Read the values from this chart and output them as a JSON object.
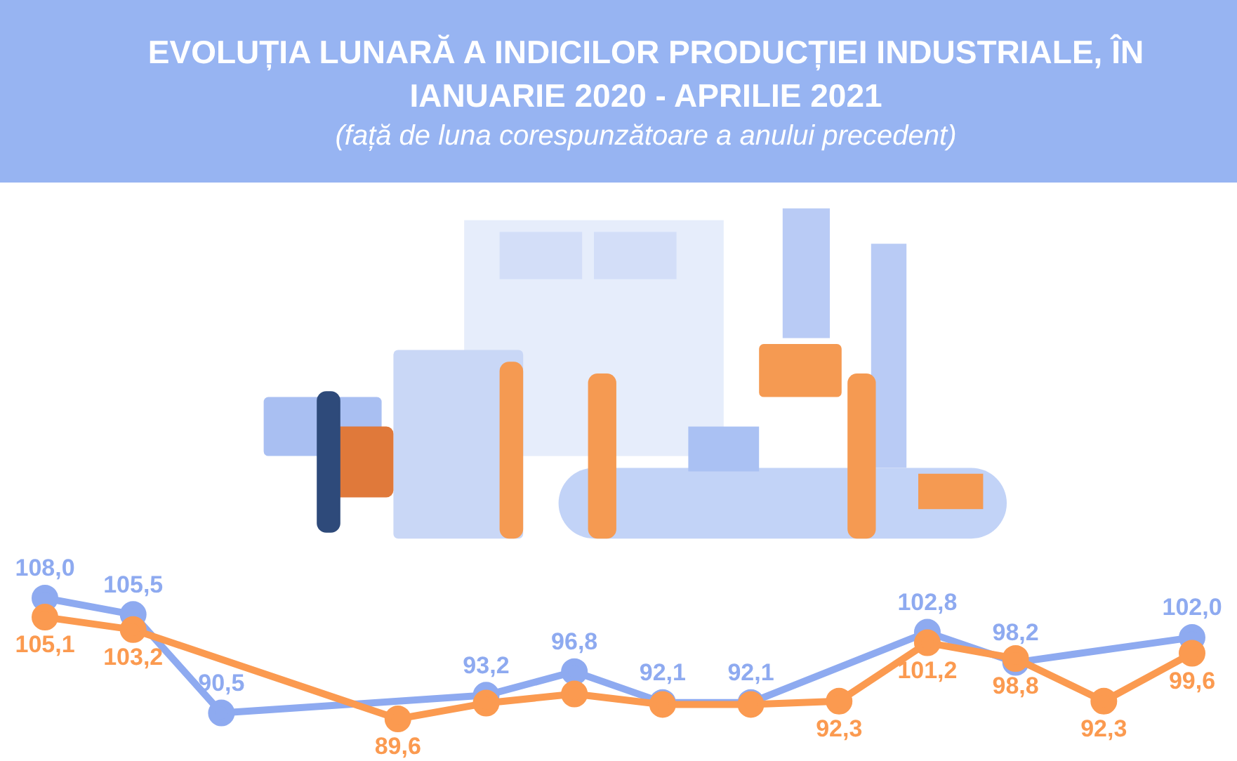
{
  "chart_data": {
    "type": "line",
    "title": "EVOLUȚIA LUNARĂ A INDICILOR PRODUCȚIEI INDUSTRIALE, ÎN IANUARIE 2020 - APRILIE 2021",
    "subtitle": "(față de luna corespunzătoare a anului precedent)",
    "categories": [
      null,
      null,
      null,
      null,
      null,
      null,
      null,
      null,
      null,
      null,
      null,
      null,
      null,
      null
    ],
    "series": [
      {
        "color": "#8eaaf0",
        "values": [
          108.0,
          105.5,
          90.5,
          null,
          null,
          93.2,
          96.8,
          92.1,
          92.1,
          null,
          102.8,
          98.2,
          null,
          102.0
        ],
        "value_labels": [
          "108,0",
          "105,5",
          "90,5",
          null,
          null,
          "93,2",
          "96,8",
          "92,1",
          "92,1",
          null,
          "102,8",
          "98,2",
          null,
          "102,0"
        ]
      },
      {
        "color": "#fb9a50",
        "values": [
          105.1,
          103.2,
          null,
          null,
          89.6,
          92.0,
          93.4,
          91.8,
          91.8,
          92.3,
          101.2,
          98.8,
          92.3,
          99.6
        ],
        "value_labels": [
          "105,1",
          "103,2",
          null,
          null,
          "89,6",
          null,
          null,
          null,
          null,
          "92,3",
          "101,2",
          "98,8",
          "92,3",
          "99,6"
        ]
      }
    ],
    "marker": "circle",
    "tick_labels": false
  }
}
